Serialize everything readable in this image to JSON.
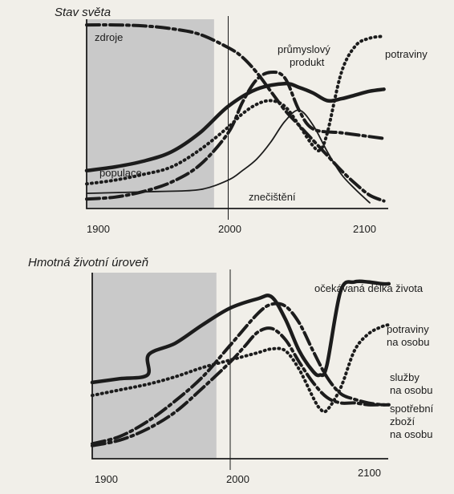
{
  "chart_data": [
    {
      "type": "line",
      "title": "Stav světa",
      "x_ticks": [
        1900,
        2000,
        2100
      ],
      "xlim": [
        1900,
        2110
      ],
      "ylim": [
        0,
        100
      ],
      "shaded_range": [
        1900,
        1990
      ],
      "marker_year": 2000,
      "series": [
        {
          "name": "zdroje",
          "style": "dashdot",
          "x": [
            1900,
            1920,
            1940,
            1960,
            1980,
            2000,
            2010,
            2020,
            2030,
            2040,
            2050,
            2060,
            2070,
            2080,
            2090,
            2100,
            2110
          ],
          "y": [
            97,
            97,
            96.5,
            95,
            92,
            85,
            80,
            72,
            62,
            52,
            44,
            36,
            28,
            20,
            13,
            7,
            4
          ]
        },
        {
          "name": "potraviny",
          "style": "dotted",
          "x": [
            1900,
            1920,
            1940,
            1960,
            1980,
            2000,
            2010,
            2020,
            2030,
            2040,
            2050,
            2060,
            2065,
            2070,
            2080,
            2090,
            2100,
            2110
          ],
          "y": [
            13,
            15,
            18,
            22,
            31,
            43,
            50,
            55,
            57,
            54,
            44,
            33,
            31,
            40,
            72,
            86,
            90,
            91
          ]
        },
        {
          "name": "průmyslový produkt",
          "style": "dashdot",
          "x": [
            1900,
            1920,
            1940,
            1960,
            1980,
            2000,
            2010,
            2020,
            2030,
            2040,
            2050,
            2060,
            2080,
            2100,
            2110
          ],
          "y": [
            5,
            6,
            9,
            14,
            23,
            40,
            56,
            68,
            72,
            69,
            52,
            42,
            40,
            38,
            37
          ]
        },
        {
          "name": "populace",
          "style": "solid",
          "x": [
            1900,
            1920,
            1940,
            1960,
            1980,
            2000,
            2020,
            2040,
            2050,
            2060,
            2070,
            2080,
            2090,
            2100,
            2110
          ],
          "y": [
            20,
            22,
            25,
            30,
            40,
            54,
            63,
            66,
            64,
            61,
            57,
            58,
            60,
            62,
            63
          ]
        },
        {
          "name": "znečištění",
          "style": "thin",
          "x": [
            1900,
            1950,
            1980,
            2000,
            2010,
            2020,
            2030,
            2040,
            2050,
            2060,
            2070,
            2080,
            2090,
            2100
          ],
          "y": [
            8,
            9,
            10,
            15,
            20,
            26,
            35,
            46,
            52,
            44,
            30,
            18,
            10,
            3
          ]
        }
      ],
      "labels": [
        "zdroje",
        "průmyslový",
        "produkt",
        "potraviny",
        "populace",
        "znečištění"
      ]
    },
    {
      "type": "line",
      "title": "Hmotná životní úroveň",
      "x_ticks": [
        1900,
        2000,
        2100
      ],
      "xlim": [
        1900,
        2115
      ],
      "ylim": [
        0,
        100
      ],
      "shaded_range": [
        1900,
        1990
      ],
      "marker_year": 2000,
      "series": [
        {
          "name": "očekávaná délka života",
          "style": "solid",
          "x": [
            1900,
            1920,
            1940,
            1941,
            1960,
            1980,
            2000,
            2020,
            2030,
            2040,
            2050,
            2060,
            2065,
            2070,
            2080,
            2090,
            2100,
            2110,
            2115
          ],
          "y": [
            41,
            43,
            45,
            56,
            62,
            72,
            81,
            86,
            87,
            75,
            58,
            47,
            45,
            50,
            90,
            95,
            95,
            94,
            94
          ]
        },
        {
          "name": "potraviny na osobu",
          "style": "dotted",
          "x": [
            1900,
            1920,
            1940,
            1960,
            1980,
            2000,
            2020,
            2030,
            2040,
            2050,
            2060,
            2065,
            2070,
            2080,
            2090,
            2100,
            2110,
            2115
          ],
          "y": [
            34,
            37,
            40,
            44,
            49,
            53,
            57,
            59,
            58,
            48,
            33,
            27,
            26,
            38,
            58,
            67,
            71,
            72
          ]
        },
        {
          "name": "služby na osobu",
          "style": "dashdot",
          "x": [
            1900,
            1920,
            1940,
            1960,
            1980,
            2000,
            2020,
            2030,
            2040,
            2050,
            2060,
            2070,
            2080,
            2090,
            2100,
            2110,
            2115
          ],
          "y": [
            8,
            12,
            20,
            31,
            44,
            61,
            78,
            83,
            82,
            73,
            58,
            44,
            35,
            32,
            30,
            29,
            29
          ]
        },
        {
          "name": "spotřební zboží na osobu",
          "style": "dashdot",
          "x": [
            1900,
            1920,
            1940,
            1960,
            1980,
            2000,
            2010,
            2020,
            2030,
            2040,
            2050,
            2060,
            2070,
            2080,
            2090,
            2100,
            2110,
            2115
          ],
          "y": [
            7,
            10,
            16,
            25,
            38,
            52,
            60,
            68,
            70,
            64,
            52,
            41,
            33,
            30,
            30,
            29,
            29,
            29
          ]
        }
      ],
      "labels": [
        "očekávaná délka života",
        "potraviny",
        "na osobu",
        "služby",
        "na osobu",
        "spotřební",
        "zboží",
        "na osobu"
      ]
    }
  ]
}
